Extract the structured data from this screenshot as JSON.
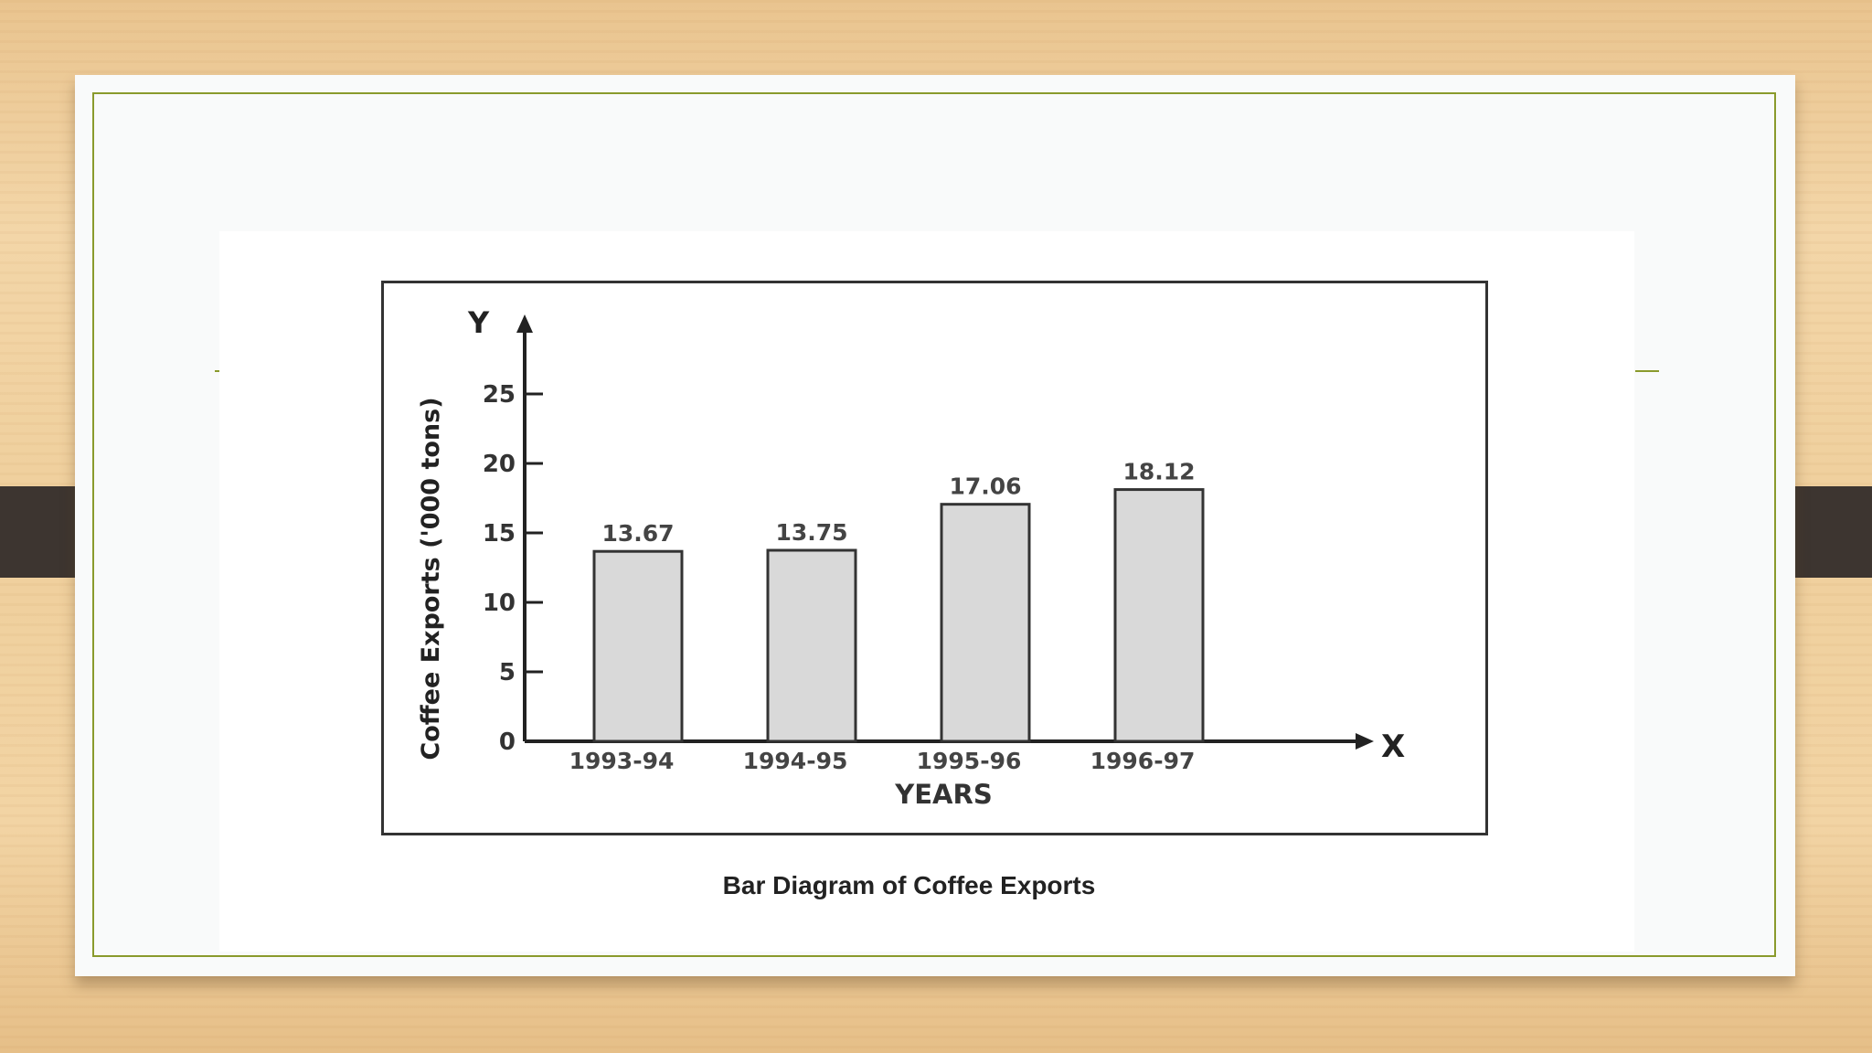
{
  "slide": {
    "caption": "Bar Diagram of Coffee Exports"
  },
  "colors": {
    "bar_fill": "#d9d9d9",
    "bar_stroke": "#333333",
    "axis": "#222222",
    "border_accent": "#8a9a2c",
    "tab": "#3d3530"
  },
  "chart_data": {
    "type": "bar",
    "categories": [
      "1993-94",
      "1994-95",
      "1995-96",
      "1996-97"
    ],
    "values": [
      13.67,
      13.75,
      17.06,
      18.12
    ],
    "data_labels": [
      "13.67",
      "13.75",
      "17.06",
      "18.12"
    ],
    "xlabel": "YEARS",
    "ylabel": "Coffee Exports ('000 tons)",
    "x_axis_letter": "X",
    "y_axis_letter": "Y",
    "ylim": [
      0,
      25
    ],
    "yticks": [
      0,
      5,
      10,
      15,
      20,
      25
    ],
    "grid": false,
    "legend": "none"
  }
}
